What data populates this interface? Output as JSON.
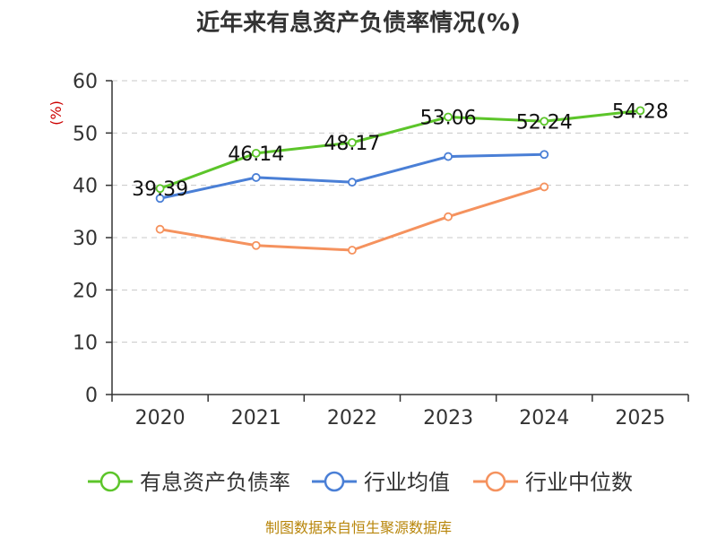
{
  "chart_data": {
    "type": "line",
    "title": "近年来有息资产负债率情况(%)",
    "ylabel": "(%)",
    "categories": [
      "2020",
      "2021",
      "2022",
      "2023",
      "2024",
      "2025"
    ],
    "ylim": [
      0,
      60
    ],
    "yticks": [
      0,
      10,
      20,
      30,
      40,
      50,
      60
    ],
    "grid": true,
    "legend_position": "bottom",
    "series": [
      {
        "name": "有息资产负债率",
        "color": "#5cc52a",
        "values": [
          39.39,
          46.14,
          48.17,
          53.06,
          52.24,
          54.28
        ],
        "labels": [
          "39.39",
          "46.14",
          "48.17",
          "53.06",
          "52.24",
          "54.28"
        ]
      },
      {
        "name": "行业均值",
        "color": "#4a7fd6",
        "values": [
          37.5,
          41.5,
          40.6,
          45.5,
          45.9,
          null
        ]
      },
      {
        "name": "行业中位数",
        "color": "#f5925e",
        "values": [
          31.6,
          28.5,
          27.6,
          34.0,
          39.7,
          null
        ]
      }
    ]
  },
  "source": "制图数据来自恒生聚源数据库"
}
